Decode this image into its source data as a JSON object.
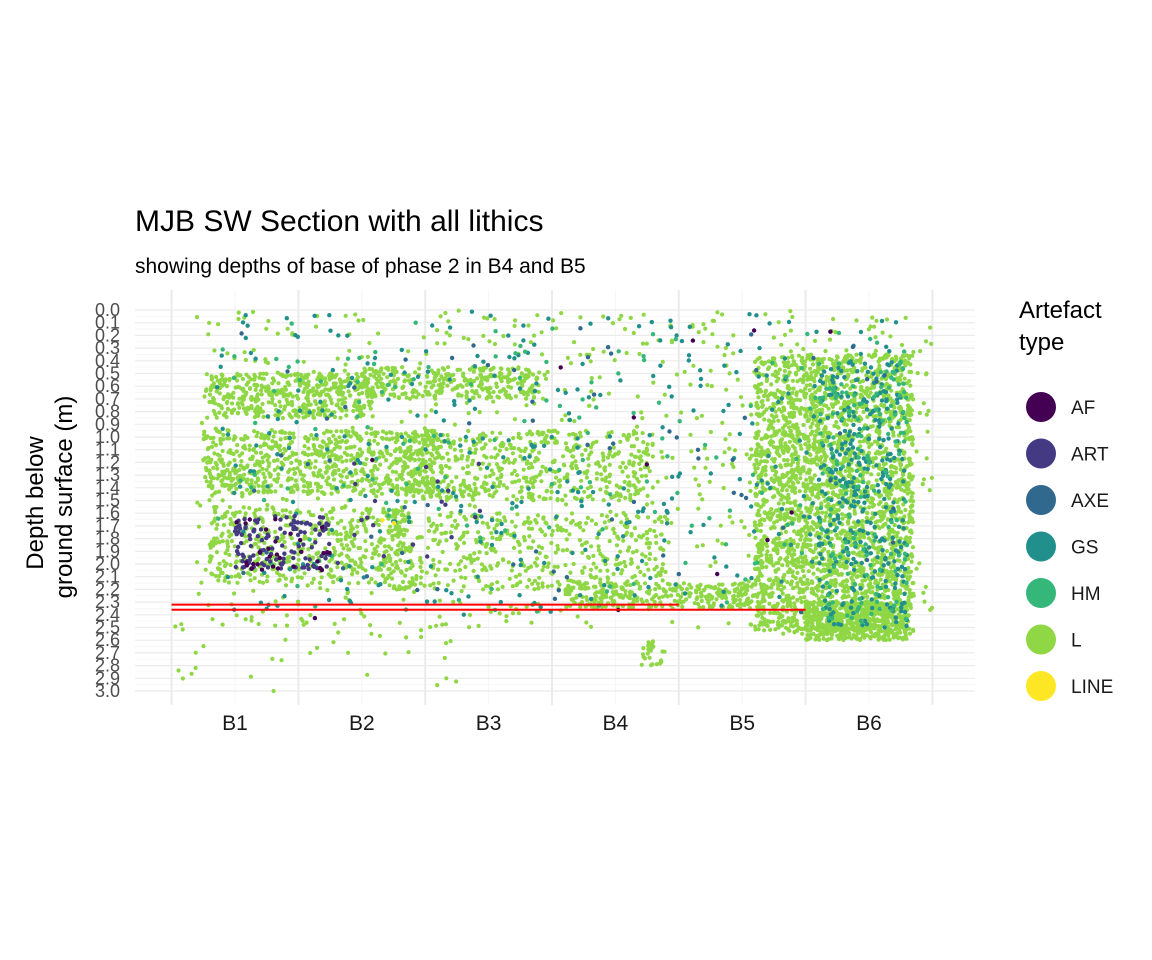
{
  "chart_data": {
    "type": "scatter",
    "title": "MJB SW Section with all lithics",
    "subtitle": "showing depths of base of phase 2 in B4 and B5",
    "ylabel_lines": [
      "Depth below",
      "ground surface (m)"
    ],
    "y_reversed": true,
    "ylim": [
      0.0,
      3.0
    ],
    "y_ticks": [
      "0.0",
      "0.1",
      "0.2",
      "0.3",
      "0.4",
      "0.5",
      "0.6",
      "0.7",
      "0.8",
      "0.9",
      "1.0",
      "1.1",
      "1.2",
      "1.3",
      "1.4",
      "1.5",
      "1.6",
      "1.7",
      "1.8",
      "1.9",
      "2.0",
      "2.1",
      "2.2",
      "2.3",
      "2.4",
      "2.5",
      "2.6",
      "2.7",
      "2.8",
      "2.9",
      "3.0"
    ],
    "x_categories": [
      "B1",
      "B2",
      "B3",
      "B4",
      "B5",
      "B6"
    ],
    "grid": true,
    "legend": {
      "title_lines": [
        "Artefact",
        "type"
      ],
      "position": "right",
      "entries": [
        {
          "label": "AF",
          "color": "#440154"
        },
        {
          "label": "ART",
          "color": "#443A83"
        },
        {
          "label": "AXE",
          "color": "#31688E"
        },
        {
          "label": "GS",
          "color": "#21908C"
        },
        {
          "label": "HM",
          "color": "#35B779"
        },
        {
          "label": "L",
          "color": "#8FD744"
        },
        {
          "label": "LINE",
          "color": "#FDE725"
        }
      ]
    },
    "phase2_base_lines": [
      {
        "label": "B4",
        "depth": 2.32,
        "color": "#FF0000",
        "x_from": 0.5,
        "x_to": 4.5
      },
      {
        "label": "B5",
        "depth": 2.36,
        "color": "#FF0000",
        "x_from": 0.5,
        "x_to": 5.5
      }
    ],
    "point_clusters": [
      {
        "type": "L",
        "x": [
          0.8,
          2.1
        ],
        "y": [
          0.5,
          0.85
        ],
        "n": 420
      },
      {
        "type": "L",
        "x": [
          2.0,
          3.4
        ],
        "y": [
          0.45,
          0.7
        ],
        "n": 300
      },
      {
        "type": "L",
        "x": [
          0.75,
          2.6
        ],
        "y": [
          0.95,
          1.45
        ],
        "n": 700
      },
      {
        "type": "L",
        "x": [
          2.3,
          4.3
        ],
        "y": [
          0.95,
          1.5
        ],
        "n": 500
      },
      {
        "type": "L",
        "x": [
          0.8,
          2.4
        ],
        "y": [
          1.55,
          2.15
        ],
        "n": 450
      },
      {
        "type": "L",
        "x": [
          2.2,
          4.4
        ],
        "y": [
          1.6,
          2.2
        ],
        "n": 400
      },
      {
        "type": "L",
        "x": [
          3.6,
          5.1
        ],
        "y": [
          2.15,
          2.35
        ],
        "n": 280
      },
      {
        "type": "L",
        "x": [
          5.1,
          6.35
        ],
        "y": [
          0.35,
          2.55
        ],
        "n": 2600
      },
      {
        "type": "L",
        "x": [
          5.5,
          6.3
        ],
        "y": [
          2.3,
          2.6
        ],
        "n": 500
      },
      {
        "type": "L",
        "x": [
          0.7,
          6.5
        ],
        "y": [
          0.0,
          2.5
        ],
        "n": 900
      },
      {
        "type": "L",
        "x": [
          0.5,
          3.0
        ],
        "y": [
          2.4,
          3.0
        ],
        "n": 40
      },
      {
        "type": "L",
        "x": [
          4.2,
          4.4
        ],
        "y": [
          2.6,
          2.8
        ],
        "n": 25
      },
      {
        "type": "GS",
        "x": [
          0.8,
          6.3
        ],
        "y": [
          0.0,
          2.4
        ],
        "n": 360
      },
      {
        "type": "GS",
        "x": [
          5.6,
          6.3
        ],
        "y": [
          0.4,
          2.5
        ],
        "n": 300
      },
      {
        "type": "HM",
        "x": [
          0.8,
          6.3
        ],
        "y": [
          0.1,
          2.4
        ],
        "n": 160
      },
      {
        "type": "HM",
        "x": [
          5.6,
          6.3
        ],
        "y": [
          0.4,
          2.5
        ],
        "n": 140
      },
      {
        "type": "AXE",
        "x": [
          0.8,
          6.3
        ],
        "y": [
          0.1,
          2.4
        ],
        "n": 70
      },
      {
        "type": "ART",
        "x": [
          1.0,
          1.75
        ],
        "y": [
          1.62,
          2.05
        ],
        "n": 120
      },
      {
        "type": "ART",
        "x": [
          1.8,
          3.0
        ],
        "y": [
          1.2,
          2.05
        ],
        "n": 20
      },
      {
        "type": "AF",
        "x": [
          1.0,
          1.8
        ],
        "y": [
          1.62,
          2.05
        ],
        "n": 30
      },
      {
        "type": "AF",
        "x": [
          1.5,
          6.1
        ],
        "y": [
          0.1,
          2.5
        ],
        "n": 12
      },
      {
        "type": "LINE",
        "x": [
          2.1,
          2.3
        ],
        "y": [
          1.65,
          1.75
        ],
        "n": 2
      }
    ]
  }
}
